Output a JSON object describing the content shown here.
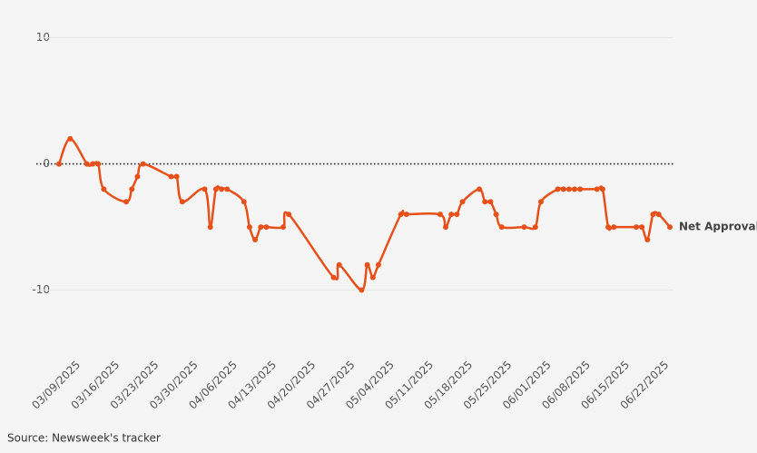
{
  "chart_data": {
    "type": "line",
    "source": "Source: Newsweek's tracker",
    "x": [
      "03/06/2025",
      "03/08/2025",
      "03/11/2025",
      "03/12/2025",
      "03/13/2025",
      "03/14/2025",
      "03/18/2025",
      "03/19/2025",
      "03/20/2025",
      "03/21/2025",
      "03/26/2025",
      "03/27/2025",
      "03/28/2025",
      "04/01/2025",
      "04/02/2025",
      "04/03/2025",
      "04/04/2025",
      "04/05/2025",
      "04/08/2025",
      "04/09/2025",
      "04/10/2025",
      "04/11/2025",
      "04/12/2025",
      "04/15/2025",
      "04/16/2025",
      "04/24/2025",
      "04/25/2025",
      "04/29/2025",
      "04/30/2025",
      "05/01/2025",
      "05/02/2025",
      "05/06/2025",
      "05/07/2025",
      "05/13/2025",
      "05/14/2025",
      "05/15/2025",
      "05/16/2025",
      "05/17/2025",
      "05/20/2025",
      "05/21/2025",
      "05/22/2025",
      "05/23/2025",
      "05/24/2025",
      "05/28/2025",
      "05/30/2025",
      "05/31/2025",
      "06/03/2025",
      "06/04/2025",
      "06/05/2025",
      "06/06/2025",
      "06/07/2025",
      "06/10/2025",
      "06/11/2025",
      "06/12/2025",
      "06/13/2025",
      "06/17/2025",
      "06/18/2025",
      "06/19/2025",
      "06/20/2025",
      "06/21/2025",
      "06/23/2025"
    ],
    "series": [
      {
        "name": "Net Approval",
        "color": "#e8501a",
        "values": [
          0,
          2,
          0,
          0,
          0,
          -2,
          -3,
          -2,
          -1,
          0,
          -1,
          -1,
          -3,
          -2,
          -5,
          -2,
          -2,
          -2,
          -3,
          -5,
          -6,
          -5,
          -5,
          -5,
          -4,
          -9,
          -8,
          -10,
          -8,
          -9,
          -8,
          -4,
          -4,
          -4,
          -5,
          -4,
          -4,
          -3,
          -2,
          -3,
          -3,
          -4,
          -5,
          -5,
          -5,
          -3,
          -2,
          -2,
          -2,
          -2,
          -2,
          -2,
          -2,
          -5,
          -5,
          -5,
          -5,
          -6,
          -4,
          -4,
          -5
        ]
      }
    ],
    "xlim": [
      "03/06/2025",
      "06/23/2025"
    ],
    "xticks": [
      "03/09/2025",
      "03/16/2025",
      "03/23/2025",
      "03/30/2025",
      "04/06/2025",
      "04/13/2025",
      "04/20/2025",
      "04/27/2025",
      "05/04/2025",
      "05/11/2025",
      "05/18/2025",
      "05/25/2025",
      "06/01/2025",
      "06/08/2025",
      "06/15/2025",
      "06/22/2025"
    ],
    "ylim": [
      -15,
      13
    ],
    "yticks": [
      -10,
      0,
      10
    ],
    "grid": true,
    "zero_line": true
  }
}
